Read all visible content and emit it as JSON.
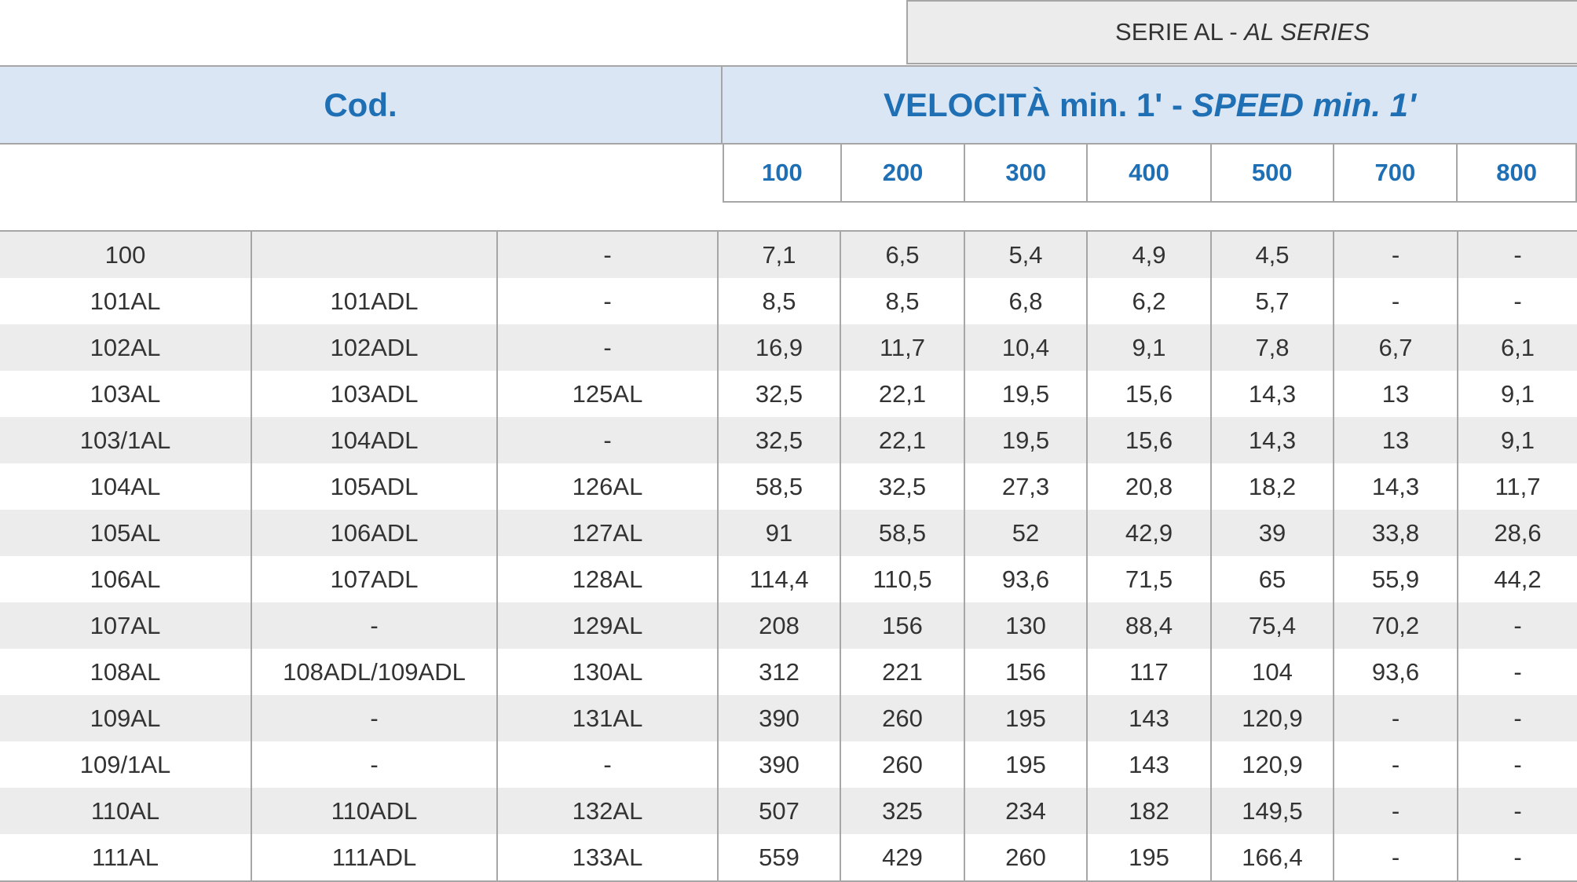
{
  "series_label": "SERIE AL - ",
  "series_label_italic": "AL SERIES",
  "header": {
    "cod": "Cod.",
    "speed": "VELOCITÀ min. 1' - ",
    "speed_italic": "SPEED min. 1'"
  },
  "speeds": [
    "100",
    "200",
    "300",
    "400",
    "500",
    "700",
    "800"
  ],
  "rows": [
    [
      "100",
      "",
      "-",
      "7,1",
      "6,5",
      "5,4",
      "4,9",
      "4,5",
      "-",
      "-"
    ],
    [
      "101AL",
      "101ADL",
      "-",
      "8,5",
      "8,5",
      "6,8",
      "6,2",
      "5,7",
      "-",
      "-"
    ],
    [
      "102AL",
      "102ADL",
      "-",
      "16,9",
      "11,7",
      "10,4",
      "9,1",
      "7,8",
      "6,7",
      "6,1"
    ],
    [
      "103AL",
      "103ADL",
      "125AL",
      "32,5",
      "22,1",
      "19,5",
      "15,6",
      "14,3",
      "13",
      "9,1"
    ],
    [
      "103/1AL",
      "104ADL",
      "-",
      "32,5",
      "22,1",
      "19,5",
      "15,6",
      "14,3",
      "13",
      "9,1"
    ],
    [
      "104AL",
      "105ADL",
      "126AL",
      "58,5",
      "32,5",
      "27,3",
      "20,8",
      "18,2",
      "14,3",
      "11,7"
    ],
    [
      "105AL",
      "106ADL",
      "127AL",
      "91",
      "58,5",
      "52",
      "42,9",
      "39",
      "33,8",
      "28,6"
    ],
    [
      "106AL",
      "107ADL",
      "128AL",
      "114,4",
      "110,5",
      "93,6",
      "71,5",
      "65",
      "55,9",
      "44,2"
    ],
    [
      "107AL",
      "-",
      "129AL",
      "208",
      "156",
      "130",
      "88,4",
      "75,4",
      "70,2",
      "-"
    ],
    [
      "108AL",
      "108ADL/109ADL",
      "130AL",
      "312",
      "221",
      "156",
      "117",
      "104",
      "93,6",
      "-"
    ],
    [
      "109AL",
      "-",
      "131AL",
      "390",
      "260",
      "195",
      "143",
      "120,9",
      "-",
      "-"
    ],
    [
      "109/1AL",
      "-",
      "-",
      "390",
      "260",
      "195",
      "143",
      "120,9",
      "-",
      "-"
    ],
    [
      "110AL",
      "110ADL",
      "132AL",
      "507",
      "325",
      "234",
      "182",
      "149,5",
      "-",
      "-"
    ],
    [
      "111AL",
      "111ADL",
      "133AL",
      "559",
      "429",
      "260",
      "195",
      "166,4",
      "-",
      "-"
    ]
  ]
}
